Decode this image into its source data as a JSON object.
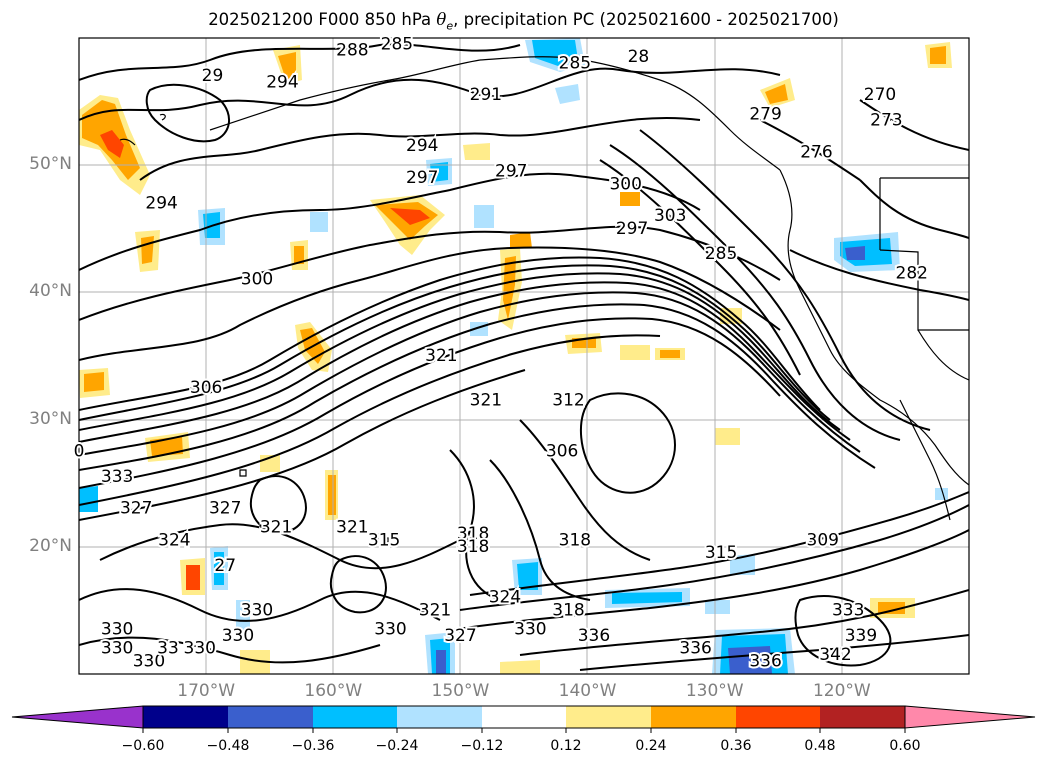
{
  "title": {
    "prefix": "2025021200 F000 850 hPa ",
    "theta_symbol": "θ",
    "theta_subscript": "e",
    "suffix": ", precipitation PC (2025021600 - 2025021700)"
  },
  "map": {
    "projection": "lat-lon",
    "lon_range": [
      -180,
      -110
    ],
    "lat_range": [
      10,
      60
    ],
    "x_ticks": [
      {
        "lon": -170,
        "label": "170°W"
      },
      {
        "lon": -160,
        "label": "160°W"
      },
      {
        "lon": -150,
        "label": "150°W"
      },
      {
        "lon": -140,
        "label": "140°W"
      },
      {
        "lon": -130,
        "label": "130°W"
      },
      {
        "lon": -120,
        "label": "120°W"
      }
    ],
    "y_ticks": [
      {
        "lat": 50,
        "label": "50°N"
      },
      {
        "lat": 40,
        "label": "40°N"
      },
      {
        "lat": 30,
        "label": "30°N"
      },
      {
        "lat": 20,
        "label": "20°N"
      }
    ],
    "grid": true,
    "tick_label_color": "#808080"
  },
  "theta_e_labels": [
    {
      "lon": -169.5,
      "lat": 57,
      "text": "29"
    },
    {
      "lon": -164,
      "lat": 56.5,
      "text": "294"
    },
    {
      "lon": -158.5,
      "lat": 59,
      "text": "288"
    },
    {
      "lon": -155,
      "lat": 59.5,
      "text": "285"
    },
    {
      "lon": -141,
      "lat": 58,
      "text": "285"
    },
    {
      "lon": -148,
      "lat": 55.5,
      "text": "291"
    },
    {
      "lon": -136,
      "lat": 58.5,
      "text": "28"
    },
    {
      "lon": -153,
      "lat": 51.5,
      "text": "294"
    },
    {
      "lon": -146,
      "lat": 49.5,
      "text": "297"
    },
    {
      "lon": -137,
      "lat": 48.5,
      "text": "300"
    },
    {
      "lon": -173.5,
      "lat": 47,
      "text": "294"
    },
    {
      "lon": -153,
      "lat": 49,
      "text": "297"
    },
    {
      "lon": -136.5,
      "lat": 45,
      "text": "297"
    },
    {
      "lon": -133.5,
      "lat": 46,
      "text": "303"
    },
    {
      "lon": -129.5,
      "lat": 43,
      "text": "285"
    },
    {
      "lon": -126,
      "lat": 54,
      "text": "279"
    },
    {
      "lon": -122,
      "lat": 51,
      "text": "276"
    },
    {
      "lon": -117,
      "lat": 55.5,
      "text": "270"
    },
    {
      "lon": -116.5,
      "lat": 53.5,
      "text": "273"
    },
    {
      "lon": -114.5,
      "lat": 41.5,
      "text": "282"
    },
    {
      "lon": -166,
      "lat": 41,
      "text": "300"
    },
    {
      "lon": -170,
      "lat": 32.5,
      "text": "306"
    },
    {
      "lon": -151.5,
      "lat": 35,
      "text": "321"
    },
    {
      "lon": -148,
      "lat": 31.5,
      "text": "321"
    },
    {
      "lon": -141.5,
      "lat": 31.5,
      "text": "312"
    },
    {
      "lon": -142,
      "lat": 27.5,
      "text": "306"
    },
    {
      "lon": -177,
      "lat": 25.5,
      "text": "333"
    },
    {
      "lon": -180,
      "lat": 27.5,
      "text": "0"
    },
    {
      "lon": -175.5,
      "lat": 23,
      "text": "327"
    },
    {
      "lon": -168.5,
      "lat": 23,
      "text": "327"
    },
    {
      "lon": -172.5,
      "lat": 20.5,
      "text": "324"
    },
    {
      "lon": -164.5,
      "lat": 21.5,
      "text": "321"
    },
    {
      "lon": -158.5,
      "lat": 21.5,
      "text": "321"
    },
    {
      "lon": -156,
      "lat": 20.5,
      "text": "315"
    },
    {
      "lon": -149,
      "lat": 21,
      "text": "318"
    },
    {
      "lon": -149,
      "lat": 20,
      "text": "318"
    },
    {
      "lon": -141,
      "lat": 20.5,
      "text": "318"
    },
    {
      "lon": -129.5,
      "lat": 19.5,
      "text": "315"
    },
    {
      "lon": -121.5,
      "lat": 20.5,
      "text": "309"
    },
    {
      "lon": -168.5,
      "lat": 18.5,
      "text": "27"
    },
    {
      "lon": -146.5,
      "lat": 16,
      "text": "324"
    },
    {
      "lon": -141.5,
      "lat": 15,
      "text": "318"
    },
    {
      "lon": -152,
      "lat": 15,
      "text": "321"
    },
    {
      "lon": -155.5,
      "lat": 13.5,
      "text": "330"
    },
    {
      "lon": -150,
      "lat": 13,
      "text": "327"
    },
    {
      "lon": -144.5,
      "lat": 13.5,
      "text": "330"
    },
    {
      "lon": -139.5,
      "lat": 13,
      "text": "336"
    },
    {
      "lon": -177,
      "lat": 13.5,
      "text": "330"
    },
    {
      "lon": -177,
      "lat": 12,
      "text": "330"
    },
    {
      "lon": -174.5,
      "lat": 11,
      "text": "330"
    },
    {
      "lon": -173,
      "lat": 12,
      "text": "33"
    },
    {
      "lon": -170.5,
      "lat": 12,
      "text": "330"
    },
    {
      "lon": -167.5,
      "lat": 13,
      "text": "330"
    },
    {
      "lon": -166,
      "lat": 15,
      "text": "330"
    },
    {
      "lon": -131.5,
      "lat": 12,
      "text": "336"
    },
    {
      "lon": -126,
      "lat": 11,
      "text": "336"
    },
    {
      "lon": -119.5,
      "lat": 15,
      "text": "333"
    },
    {
      "lon": -118.5,
      "lat": 13,
      "text": "339"
    },
    {
      "lon": -120.5,
      "lat": 11.5,
      "text": "342"
    }
  ],
  "colorbar": {
    "colors": [
      "#9932cc",
      "#00008b",
      "#3a5fcd",
      "#00bfff",
      "#b0e2ff",
      "#ffffff",
      "#ffec8b",
      "#ffa500",
      "#ff4500",
      "#b22222",
      "#ff88aa"
    ],
    "tick_labels": [
      "−0.60",
      "−0.48",
      "−0.36",
      "−0.24",
      "−0.12",
      "0.12",
      "0.24",
      "0.36",
      "0.48",
      "0.60"
    ]
  },
  "colors": {
    "contour": "#000000",
    "coastline": "#000000",
    "gridline": "#b0b0b0"
  }
}
